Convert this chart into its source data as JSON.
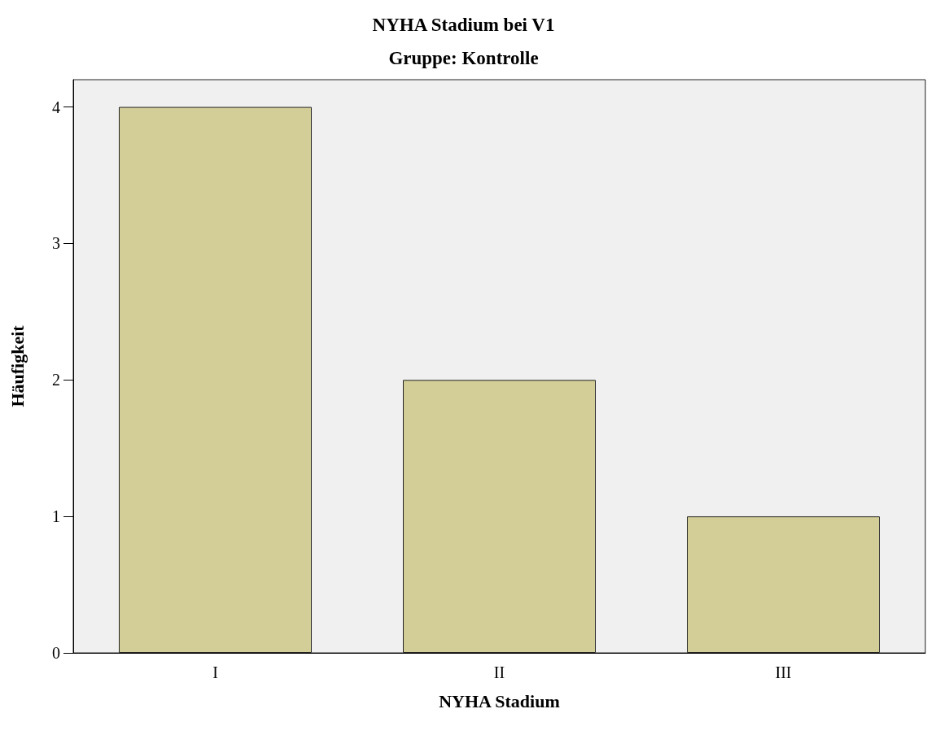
{
  "chart_data": {
    "type": "bar",
    "title": "NYHA Stadium bei V1",
    "subtitle": "Gruppe: Kontrolle",
    "xlabel": "NYHA Stadium",
    "ylabel": "Häufigkeit",
    "categories": [
      "I",
      "II",
      "III"
    ],
    "values": [
      4,
      2,
      1
    ],
    "color": "#d3ce97",
    "ylim": [
      0,
      4.2
    ],
    "yticks": [
      0,
      1,
      2,
      3,
      4
    ],
    "grid": false
  }
}
